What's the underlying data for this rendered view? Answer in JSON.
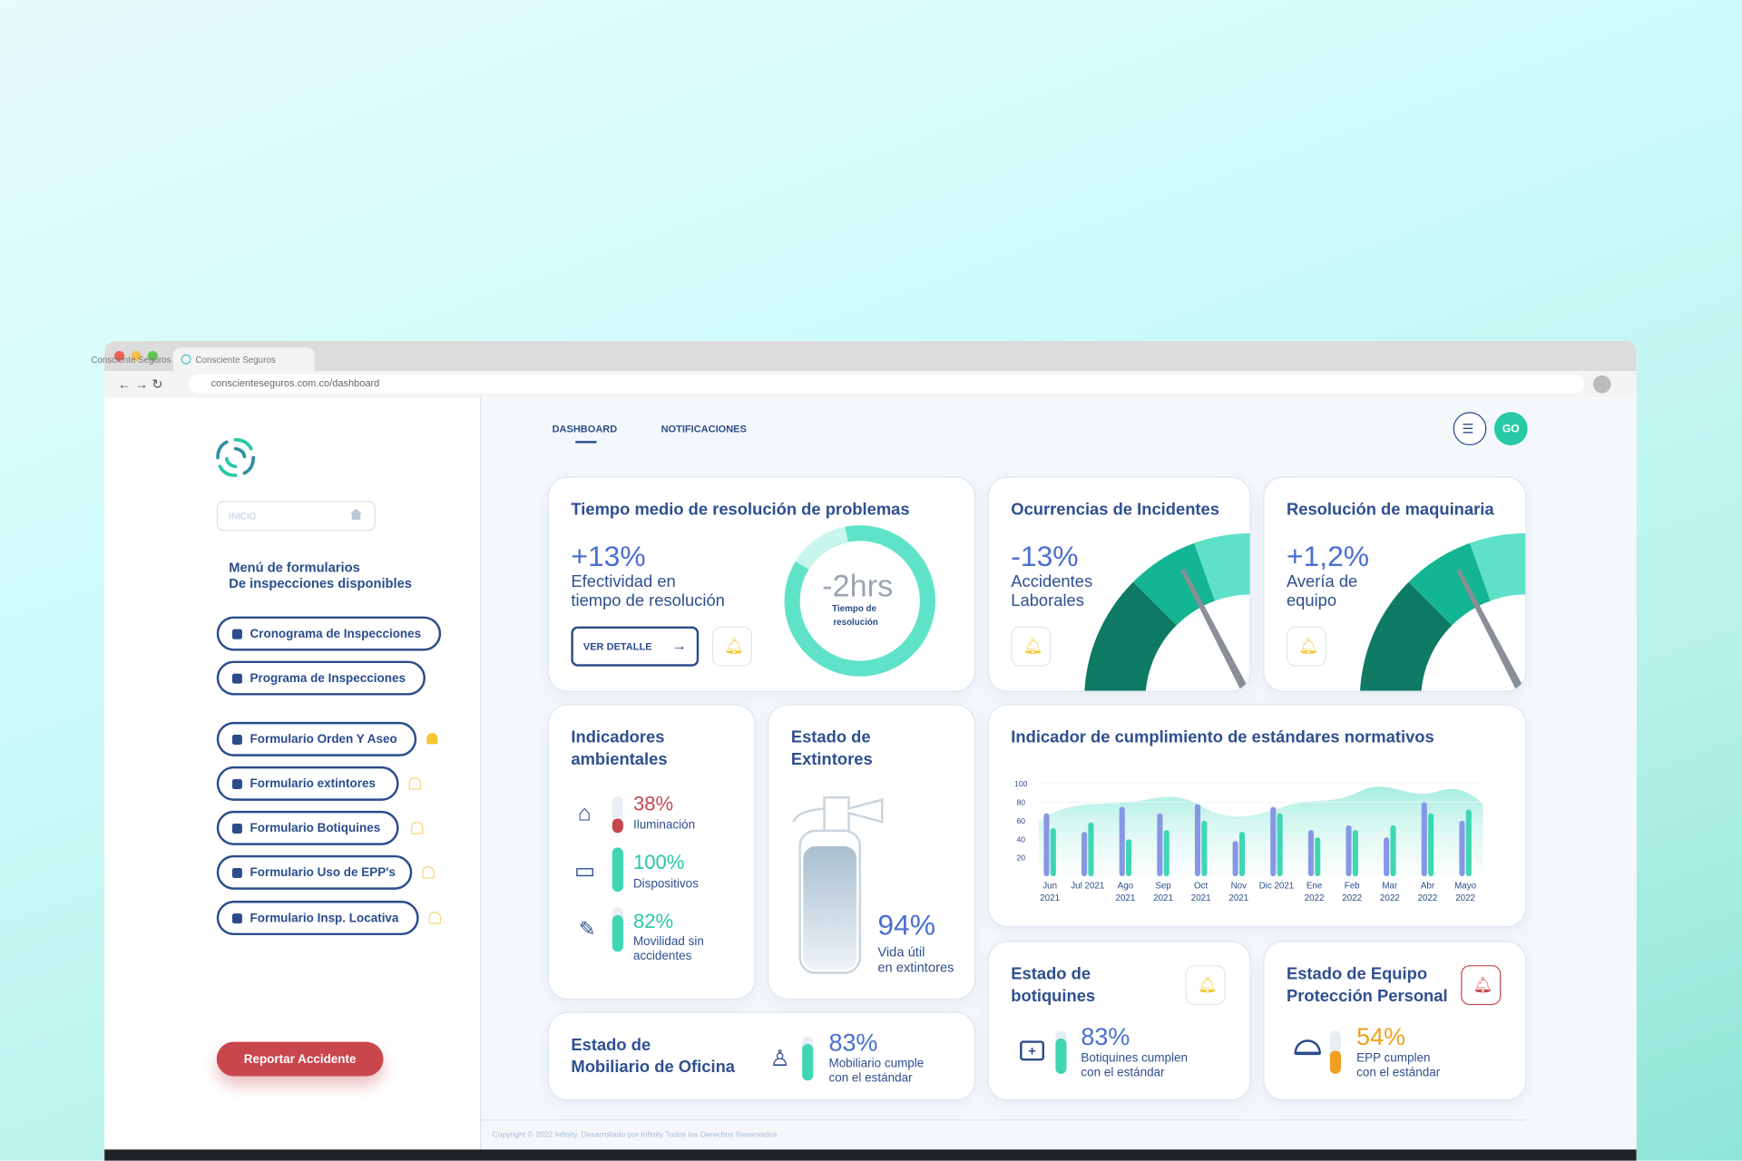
{
  "browser": {
    "tab_title": "Consciente Seguros",
    "url": "conscienteseguros.com.co/dashboard"
  },
  "sidebar": {
    "search": "INICIO",
    "menu_title": [
      "Menú de formularios",
      "De inspecciones disponibles"
    ],
    "programs": [
      "Cronograma de Inspecciones",
      "Programa de Inspecciones"
    ],
    "forms": [
      "Formulario Orden Y Aseo",
      "Formulario extintores",
      "Formulario Botiquines",
      "Formulario Uso de EPP's",
      "Formulario Insp. Locativa"
    ],
    "report": "Reportar Accidente"
  },
  "nav": {
    "tabs": [
      "DASHBOARD",
      "NOTIFICACIONES"
    ],
    "avatar": "GO"
  },
  "cards": {
    "resolution": {
      "title": "Tiempo medio de resolución de problemas",
      "value": "+13%",
      "label": [
        "Efectividad en",
        "tiempo de resolución"
      ],
      "button": "VER DETALLE",
      "donut_value": "-2hrs",
      "donut_label": [
        "Tiempo de",
        "resolución"
      ]
    },
    "incidents": {
      "title": "Ocurrencias de Incidentes",
      "value": "-13%",
      "label": [
        "Accidentes",
        "Laborales"
      ]
    },
    "machinery": {
      "title": "Resolución de maquinaria",
      "value": "+1,2%",
      "label": [
        "Avería de",
        "equipo"
      ]
    },
    "environment": {
      "title": [
        "Indicadores",
        "ambientales"
      ],
      "items": [
        {
          "value": "38%",
          "label": [
            "Iluminación"
          ]
        },
        {
          "value": "100%",
          "label": [
            "Dispositivos"
          ]
        },
        {
          "value": "82%",
          "label": [
            "Movilidad sin",
            "accidentes"
          ]
        }
      ]
    },
    "extinguishers": {
      "title": [
        "Estado de",
        "Extintores"
      ],
      "value": "94%",
      "label": [
        "Vida útil",
        "en extintores"
      ]
    },
    "furniture": {
      "title": [
        "Estado de",
        "Mobiliario de Oficina"
      ],
      "value": "83%",
      "label": [
        "Mobiliario cumple",
        "con el estándar"
      ]
    },
    "first_aid": {
      "title": [
        "Estado de",
        "botiquines"
      ],
      "value": "83%",
      "label": [
        "Botiquines cumplen",
        "con el estándar"
      ]
    },
    "ppe": {
      "title": [
        "Estado de Equipo",
        "Protección Personal"
      ],
      "value": "54%",
      "label": [
        "EPP cumplen",
        "con el estándar"
      ]
    }
  },
  "chart_data": {
    "type": "bar",
    "title": "Indicador de cumplimiento de estándares normativos",
    "categories": [
      "Jun 2021",
      "Jul 2021",
      "Ago 2021",
      "Sep 2021",
      "Oct 2021",
      "Nov 2021",
      "Dic 2021",
      "Ene 2022",
      "Feb 2022",
      "Mar 2022",
      "Abr 2022",
      "Mayo 2022"
    ],
    "series": [
      {
        "color": "#8797e6",
        "values": [
          68,
          48,
          75,
          68,
          78,
          38,
          75,
          50,
          55,
          42,
          80,
          60
        ]
      },
      {
        "color": "#3fd6b4",
        "values": [
          52,
          58,
          40,
          50,
          60,
          48,
          68,
          42,
          50,
          55,
          68,
          72
        ]
      }
    ],
    "ylim": [
      0,
      100
    ],
    "yticks": [
      20,
      40,
      60,
      80,
      100
    ]
  },
  "footer": "Copyright © 2022 Infinity. Desarrollado por Infinity Todos los Derechos Reservados"
}
